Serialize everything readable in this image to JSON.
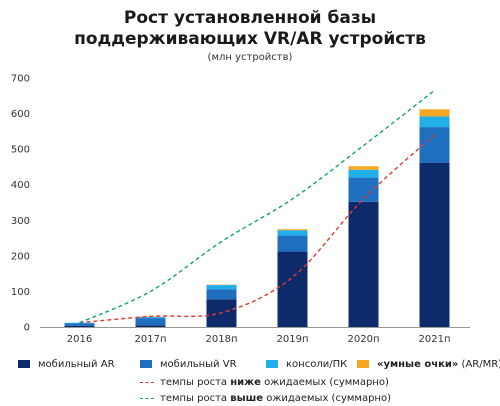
{
  "chart": {
    "title_line1": "Рост установленной базы",
    "title_line2": "поддерживающих VR/AR устройств",
    "subtitle": "(млн устройств)"
  },
  "legend": {
    "mobile_ar": "мобильный AR",
    "mobile_vr": "мобильный VR",
    "consoles": "консоли/ПК",
    "smart_glasses_bold": "«умные очки»",
    "smart_glasses_rest": " (AR/MR)",
    "line_below_pre": "темпы роста ",
    "line_below_bold": "ниже",
    "line_below_post": " ожидаемых (суммарно)",
    "line_above_pre": "темпы роста ",
    "line_above_bold": "выше",
    "line_above_post": " ожидаемых (суммарно)"
  },
  "colors": {
    "mobile_ar": "#0d2a6b",
    "mobile_vr": "#1f6fc0",
    "consoles": "#22aee8",
    "smart_glasses": "#f5a623",
    "line_below": "#e03a2f",
    "line_above": "#1aa079",
    "axis": "#999999"
  },
  "chart_data": {
    "type": "bar",
    "stacked": true,
    "title": "Рост установленной базы поддерживающих VR/AR устройств",
    "subtitle": "(млн устройств)",
    "categories": [
      "2016",
      "2017п",
      "2018п",
      "2019п",
      "2020п",
      "2021п"
    ],
    "ylim": [
      0,
      700
    ],
    "yticks": [
      0,
      100,
      200,
      300,
      400,
      500,
      600,
      700
    ],
    "series": [
      {
        "name": "мобильный AR",
        "values": [
          3,
          5,
          78,
          212,
          352,
          462
        ]
      },
      {
        "name": "мобильный VR",
        "values": [
          7,
          20,
          28,
          45,
          68,
          100
        ]
      },
      {
        "name": "консоли/ПК",
        "values": [
          2,
          3,
          12,
          15,
          22,
          30
        ]
      },
      {
        "name": "«умные очки» (AR/MR)",
        "values": [
          0,
          1,
          1,
          3,
          10,
          20
        ]
      }
    ],
    "lines": [
      {
        "name": "темпы роста ниже ожидаемых (суммарно)",
        "values": [
          12,
          30,
          40,
          140,
          360,
          540
        ],
        "style": "dashed"
      },
      {
        "name": "темпы роста выше ожидаемых (суммарно)",
        "values": [
          12,
          100,
          240,
          360,
          510,
          665
        ],
        "style": "dashed"
      }
    ],
    "legend_position": "bottom",
    "grid": false
  }
}
